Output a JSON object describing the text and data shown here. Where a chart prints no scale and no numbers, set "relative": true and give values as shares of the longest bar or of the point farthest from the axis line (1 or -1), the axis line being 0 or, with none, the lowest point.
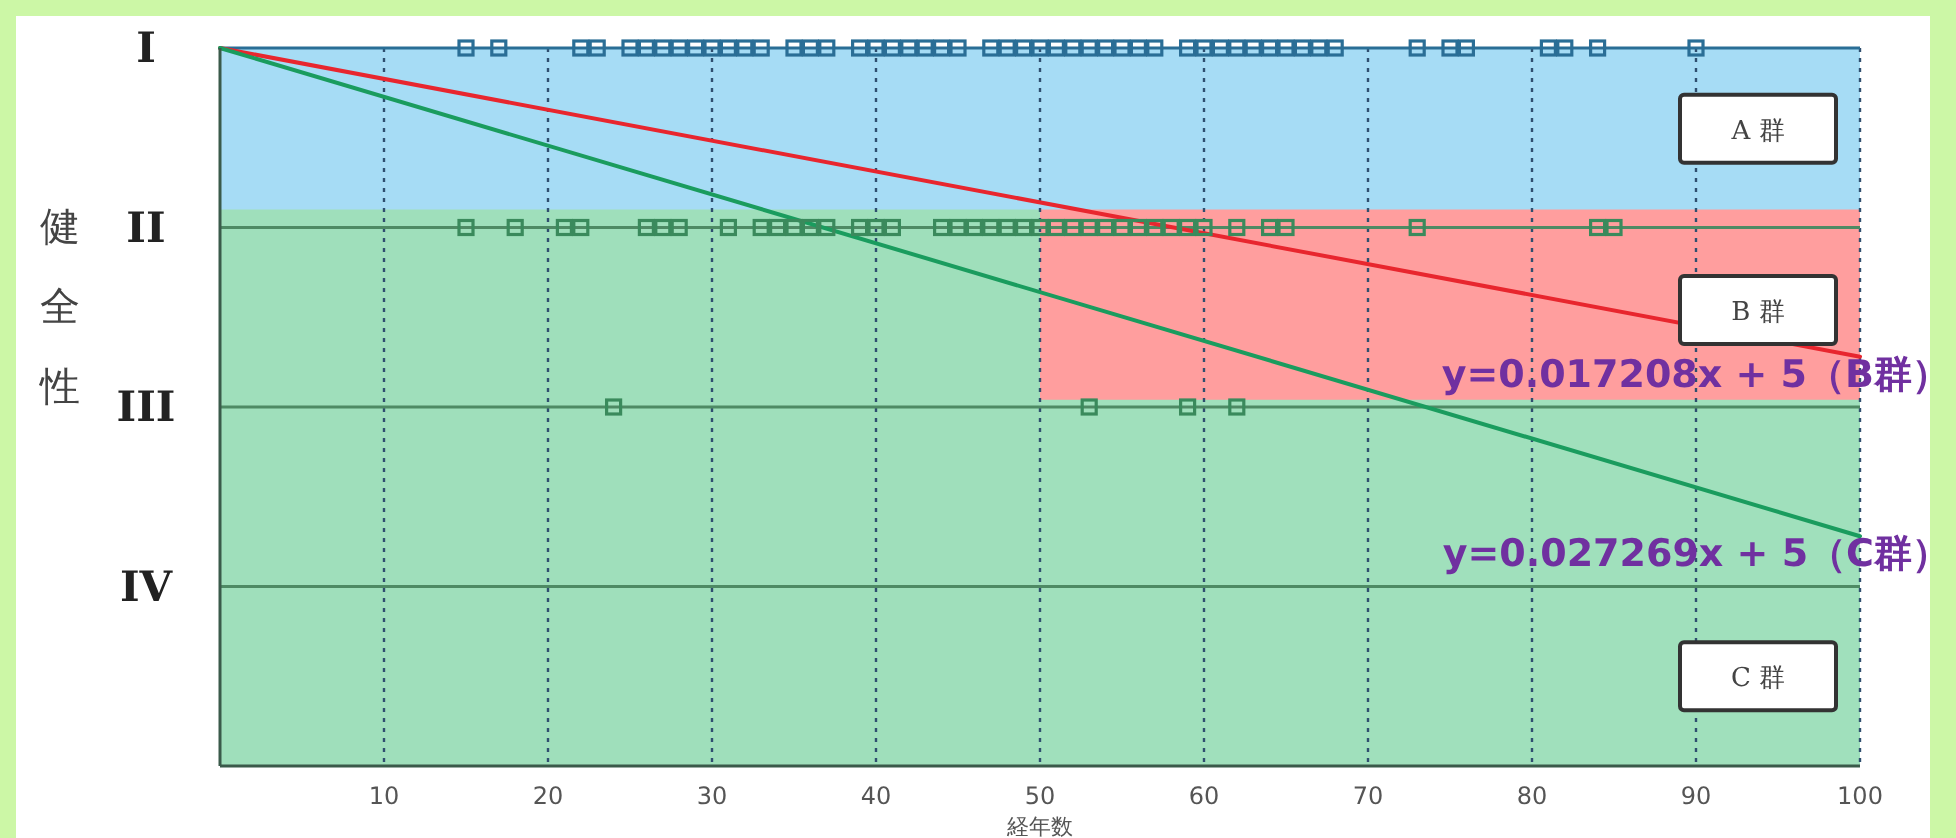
{
  "chart_data": {
    "type": "line",
    "relative": true,
    "xlabel": "経年数",
    "ylabel": "健全性",
    "xlim": [
      0,
      100
    ],
    "xticks": [
      10,
      20,
      30,
      40,
      50,
      60,
      70,
      80,
      90,
      100
    ],
    "grid": "x",
    "ref_lines": [
      {
        "axis": "y",
        "value": 1,
        "label": "I",
        "color": "#2a6e96"
      },
      {
        "axis": "y",
        "value": 0.75,
        "label": "II",
        "color": "#4e8a64"
      },
      {
        "axis": "y",
        "value": 0.5,
        "label": "III",
        "color": "#4e8a64"
      },
      {
        "axis": "y",
        "value": 0.25,
        "label": "IV",
        "color": "#4e8a64"
      }
    ],
    "series": [
      {
        "type": "area",
        "name": "A 群",
        "color": "#a6dcf5",
        "x": [
          0,
          100
        ],
        "values": [
          1,
          1
        ]
      },
      {
        "type": "area",
        "color": "#9fdfbb",
        "x": [
          0,
          50
        ],
        "values": [
          0.775,
          0.775
        ]
      },
      {
        "type": "area",
        "name": "B 群",
        "color": "#ff9e9e",
        "x": [
          50,
          100
        ],
        "values": [
          0.775,
          0.775
        ]
      },
      {
        "type": "area",
        "name": "C 群",
        "color": "#a0e0bc",
        "x": [
          50,
          100
        ],
        "values": [
          0.51,
          0.51
        ]
      },
      {
        "name": "y=0.017208x + 5（B群）",
        "color": "#e8262e",
        "x": [
          0,
          100
        ],
        "values": [
          1,
          0.57
        ]
      },
      {
        "name": "y=0.027269x + 5（C群）",
        "color": "#1a9c5e",
        "x": [
          0,
          100
        ],
        "values": [
          1,
          0.32
        ]
      },
      {
        "type": "scatter",
        "marker": "square",
        "color": "#2a6e96",
        "x": [
          15,
          17,
          22,
          23,
          25,
          26,
          27,
          28,
          29,
          30,
          31,
          32,
          33,
          35,
          36,
          37,
          39,
          40,
          41,
          42,
          43,
          44,
          45,
          47,
          48,
          49,
          50,
          51,
          52,
          53,
          54,
          55,
          56,
          57,
          59,
          60,
          61,
          62,
          63,
          64,
          65,
          66,
          67,
          68,
          73,
          75,
          76,
          81,
          82,
          84,
          90
        ],
        "values": [
          1,
          1,
          1,
          1,
          1,
          1,
          1,
          1,
          1,
          1,
          1,
          1,
          1,
          1,
          1,
          1,
          1,
          1,
          1,
          1,
          1,
          1,
          1,
          1,
          1,
          1,
          1,
          1,
          1,
          1,
          1,
          1,
          1,
          1,
          1,
          1,
          1,
          1,
          1,
          1,
          1,
          1,
          1,
          1,
          1,
          1,
          1,
          1,
          1,
          1,
          1
        ]
      },
      {
        "type": "scatter",
        "marker": "square",
        "color": "#3a8a5c",
        "x": [
          15,
          18,
          21,
          22,
          26,
          27,
          28,
          31,
          33,
          34,
          35,
          36,
          37,
          39,
          40,
          41,
          44,
          45,
          46,
          47,
          48,
          49,
          50,
          51,
          52,
          53,
          54,
          55,
          56,
          57,
          58,
          59,
          60,
          62,
          64,
          65,
          73,
          84,
          85
        ],
        "values": [
          0.75,
          0.75,
          0.75,
          0.75,
          0.75,
          0.75,
          0.75,
          0.75,
          0.75,
          0.75,
          0.75,
          0.75,
          0.75,
          0.75,
          0.75,
          0.75,
          0.75,
          0.75,
          0.75,
          0.75,
          0.75,
          0.75,
          0.75,
          0.75,
          0.75,
          0.75,
          0.75,
          0.75,
          0.75,
          0.75,
          0.75,
          0.75,
          0.75,
          0.75,
          0.75,
          0.75,
          0.75,
          0.75,
          0.75
        ]
      },
      {
        "type": "scatter",
        "marker": "square",
        "color": "#3a8a5c",
        "x": [
          24,
          53,
          59,
          62
        ],
        "values": [
          0.5,
          0.5,
          0.5,
          0.5
        ]
      }
    ]
  }
}
